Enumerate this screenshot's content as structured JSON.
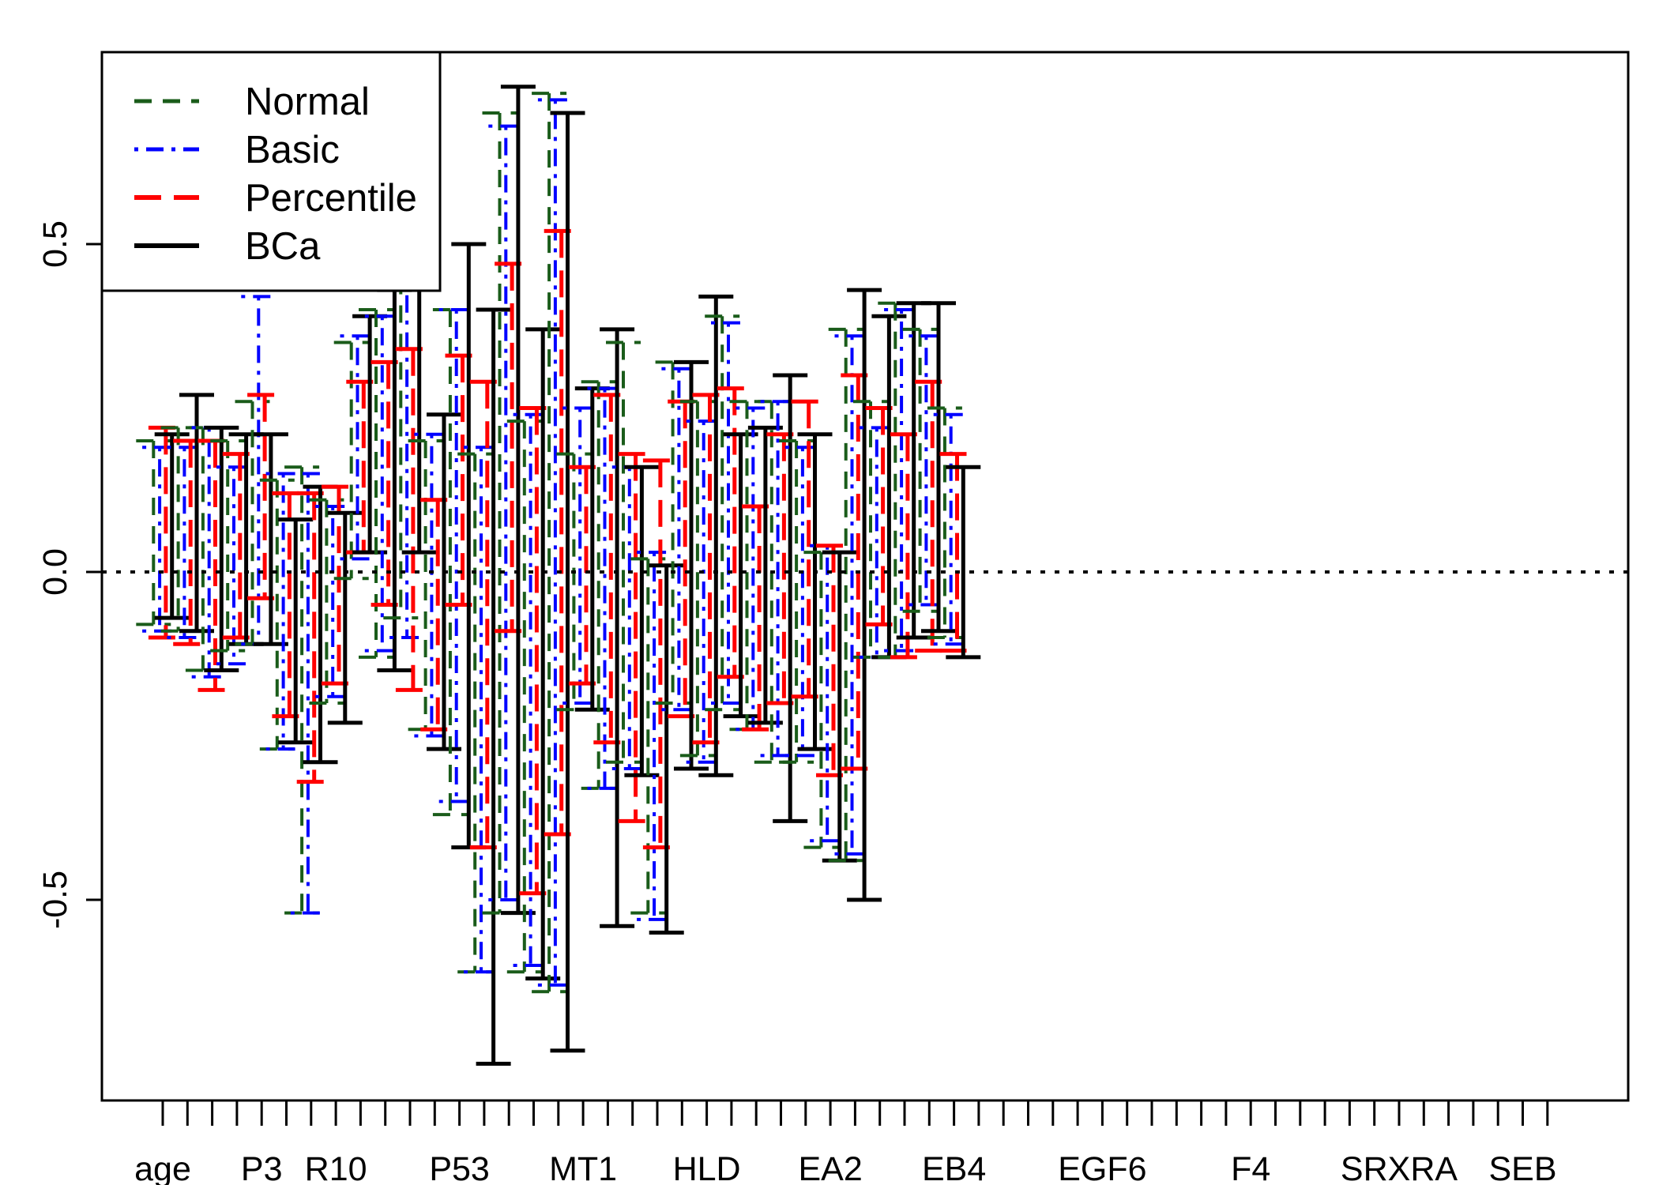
{
  "chart_data": {
    "type": "errorbar",
    "title": "",
    "xlabel": "",
    "ylabel": "",
    "ylim": [
      -0.8,
      0.8
    ],
    "y_ticks": [
      -0.5,
      0.0,
      0.5
    ],
    "y_tick_labels": [
      "-0.5",
      "0.0",
      "0.5"
    ],
    "x_labels": [
      {
        "label": "age",
        "index": 1
      },
      {
        "label": "P3",
        "index": 5
      },
      {
        "label": "R10",
        "index": 8
      },
      {
        "label": "P53",
        "index": 13
      },
      {
        "label": "MT1",
        "index": 18
      },
      {
        "label": "HLD",
        "index": 23
      },
      {
        "label": "EA2",
        "index": 28
      },
      {
        "label": "EB4",
        "index": 33
      },
      {
        "label": "EGF6",
        "index": 39
      },
      {
        "label": "F4",
        "index": 45
      },
      {
        "label": "SRXRA",
        "index": 51
      },
      {
        "label": "SEB",
        "index": 56
      }
    ],
    "n_variables": 57,
    "reference_line": 0,
    "legend": {
      "position": "top-left",
      "entries": [
        {
          "name": "Normal",
          "color": "#1a5c1a",
          "dash": "dashed"
        },
        {
          "name": "Basic",
          "color": "#0000ff",
          "dash": "dotdash"
        },
        {
          "name": "Percentile",
          "color": "#ff0000",
          "dash": "longdash"
        },
        {
          "name": "BCa",
          "color": "#000000",
          "dash": "solid"
        }
      ]
    },
    "intervals": [
      {
        "lo": -0.08,
        "hi": 0.2
      },
      {
        "lo": -0.09,
        "hi": 0.19
      },
      {
        "lo": -0.1,
        "hi": 0.22
      },
      {
        "lo": -0.07,
        "hi": 0.21
      },
      {
        "lo": -0.09,
        "hi": 0.22
      },
      {
        "lo": -0.1,
        "hi": 0.19
      },
      {
        "lo": -0.11,
        "hi": 0.2
      },
      {
        "lo": -0.09,
        "hi": 0.27
      },
      {
        "lo": -0.15,
        "hi": 0.22
      },
      {
        "lo": -0.16,
        "hi": 0.22
      },
      {
        "lo": -0.18,
        "hi": 0.2
      },
      {
        "lo": -0.15,
        "hi": 0.22
      },
      {
        "lo": -0.12,
        "hi": 0.2
      },
      {
        "lo": -0.14,
        "hi": 0.16
      },
      {
        "lo": -0.1,
        "hi": 0.18
      },
      {
        "lo": -0.11,
        "hi": 0.21
      },
      {
        "lo": -0.11,
        "hi": 0.26
      },
      {
        "lo": -0.11,
        "hi": 0.42
      },
      {
        "lo": -0.04,
        "hi": 0.27
      },
      {
        "lo": -0.11,
        "hi": 0.21
      },
      {
        "lo": -0.27,
        "hi": 0.14
      },
      {
        "lo": -0.27,
        "hi": 0.15
      },
      {
        "lo": -0.22,
        "hi": 0.12
      },
      {
        "lo": -0.26,
        "hi": 0.08
      },
      {
        "lo": -0.52,
        "hi": 0.16
      },
      {
        "lo": -0.52,
        "hi": 0.15
      },
      {
        "lo": -0.32,
        "hi": 0.12
      },
      {
        "lo": -0.29,
        "hi": 0.13
      },
      {
        "lo": -0.2,
        "hi": 0.11
      },
      {
        "lo": -0.19,
        "hi": 0.1
      },
      {
        "lo": -0.17,
        "hi": 0.13
      },
      {
        "lo": -0.23,
        "hi": 0.09
      },
      {
        "lo": -0.01,
        "hi": 0.35
      },
      {
        "lo": 0.02,
        "hi": 0.36
      },
      {
        "lo": 0.03,
        "hi": 0.29
      },
      {
        "lo": 0.03,
        "hi": 0.39
      },
      {
        "lo": -0.13,
        "hi": 0.4
      },
      {
        "lo": -0.12,
        "hi": 0.39
      },
      {
        "lo": -0.05,
        "hi": 0.32
      },
      {
        "lo": -0.15,
        "hi": 0.43
      },
      {
        "lo": -0.07,
        "hi": 0.45
      },
      {
        "lo": -0.1,
        "hi": 0.44
      },
      {
        "lo": -0.18,
        "hi": 0.34
      },
      {
        "lo": 0.03,
        "hi": 0.51
      },
      {
        "lo": -0.24,
        "hi": 0.2
      },
      {
        "lo": -0.25,
        "hi": 0.21
      },
      {
        "lo": -0.24,
        "hi": 0.11
      },
      {
        "lo": -0.27,
        "hi": 0.24
      },
      {
        "lo": -0.37,
        "hi": 0.4
      },
      {
        "lo": -0.35,
        "hi": 0.4
      },
      {
        "lo": -0.05,
        "hi": 0.33
      },
      {
        "lo": -0.42,
        "hi": 0.5
      },
      {
        "lo": -0.61,
        "hi": 0.18
      },
      {
        "lo": -0.61,
        "hi": 0.19
      },
      {
        "lo": -0.42,
        "hi": 0.29
      },
      {
        "lo": -0.75,
        "hi": 0.4
      },
      {
        "lo": -0.52,
        "hi": 0.7
      },
      {
        "lo": -0.5,
        "hi": 0.68
      },
      {
        "lo": -0.09,
        "hi": 0.47
      },
      {
        "lo": -0.52,
        "hi": 0.74
      },
      {
        "lo": -0.61,
        "hi": 0.23
      },
      {
        "lo": -0.6,
        "hi": 0.24
      },
      {
        "lo": -0.49,
        "hi": 0.25
      },
      {
        "lo": -0.62,
        "hi": 0.37
      },
      {
        "lo": -0.64,
        "hi": 0.73
      },
      {
        "lo": -0.63,
        "hi": 0.72
      },
      {
        "lo": -0.4,
        "hi": 0.52
      },
      {
        "lo": -0.73,
        "hi": 0.7
      },
      {
        "lo": -0.21,
        "hi": 0.18
      },
      {
        "lo": -0.2,
        "hi": 0.25
      },
      {
        "lo": -0.17,
        "hi": 0.16
      },
      {
        "lo": -0.21,
        "hi": 0.28
      },
      {
        "lo": -0.33,
        "hi": 0.29
      },
      {
        "lo": -0.33,
        "hi": 0.28
      },
      {
        "lo": -0.26,
        "hi": 0.27
      },
      {
        "lo": -0.54,
        "hi": 0.37
      },
      {
        "lo": -0.29,
        "hi": 0.35
      },
      {
        "lo": -0.3,
        "hi": 0.16
      },
      {
        "lo": -0.38,
        "hi": 0.18
      },
      {
        "lo": -0.31,
        "hi": 0.16
      },
      {
        "lo": -0.52,
        "hi": 0.02
      },
      {
        "lo": -0.53,
        "hi": 0.03
      },
      {
        "lo": -0.42,
        "hi": 0.17
      },
      {
        "lo": -0.55,
        "hi": 0.01
      },
      {
        "lo": -0.2,
        "hi": 0.32
      },
      {
        "lo": -0.21,
        "hi": 0.31
      },
      {
        "lo": -0.22,
        "hi": 0.26
      },
      {
        "lo": -0.3,
        "hi": 0.32
      },
      {
        "lo": -0.28,
        "hi": 0.26
      },
      {
        "lo": -0.29,
        "hi": 0.23
      },
      {
        "lo": -0.26,
        "hi": 0.27
      },
      {
        "lo": -0.31,
        "hi": 0.42
      },
      {
        "lo": -0.21,
        "hi": 0.39
      },
      {
        "lo": -0.2,
        "hi": 0.38
      },
      {
        "lo": -0.16,
        "hi": 0.28
      },
      {
        "lo": -0.22,
        "hi": 0.21
      },
      {
        "lo": -0.24,
        "hi": 0.26
      },
      {
        "lo": -0.24,
        "hi": 0.25
      },
      {
        "lo": -0.24,
        "hi": 0.1
      },
      {
        "lo": -0.23,
        "hi": 0.22
      },
      {
        "lo": -0.29,
        "hi": 0.26
      },
      {
        "lo": -0.28,
        "hi": 0.26
      },
      {
        "lo": -0.2,
        "hi": 0.21
      },
      {
        "lo": -0.38,
        "hi": 0.3
      },
      {
        "lo": -0.29,
        "hi": 0.2
      },
      {
        "lo": -0.28,
        "hi": 0.19
      },
      {
        "lo": -0.19,
        "hi": 0.26
      },
      {
        "lo": -0.27,
        "hi": 0.21
      },
      {
        "lo": -0.42,
        "hi": 0.03
      },
      {
        "lo": -0.41,
        "hi": 0.04
      },
      {
        "lo": -0.31,
        "hi": 0.04
      },
      {
        "lo": -0.44,
        "hi": 0.03
      },
      {
        "lo": -0.44,
        "hi": 0.37
      },
      {
        "lo": -0.43,
        "hi": 0.36
      },
      {
        "lo": -0.3,
        "hi": 0.3
      },
      {
        "lo": -0.5,
        "hi": 0.43
      },
      {
        "lo": -0.13,
        "hi": 0.26
      },
      {
        "lo": -0.13,
        "hi": 0.22
      },
      {
        "lo": -0.08,
        "hi": 0.25
      },
      {
        "lo": -0.13,
        "hi": 0.39
      },
      {
        "lo": -0.13,
        "hi": 0.41
      },
      {
        "lo": -0.12,
        "hi": 0.4
      },
      {
        "lo": -0.13,
        "hi": 0.21
      },
      {
        "lo": -0.1,
        "hi": 0.41
      },
      {
        "lo": -0.06,
        "hi": 0.37
      },
      {
        "lo": -0.05,
        "hi": 0.36
      },
      {
        "lo": -0.12,
        "hi": 0.29
      },
      {
        "lo": -0.09,
        "hi": 0.41
      },
      {
        "lo": -0.1,
        "hi": 0.25
      },
      {
        "lo": -0.11,
        "hi": 0.24
      },
      {
        "lo": -0.12,
        "hi": 0.18
      },
      {
        "lo": -0.13,
        "hi": 0.16
      }
    ]
  }
}
